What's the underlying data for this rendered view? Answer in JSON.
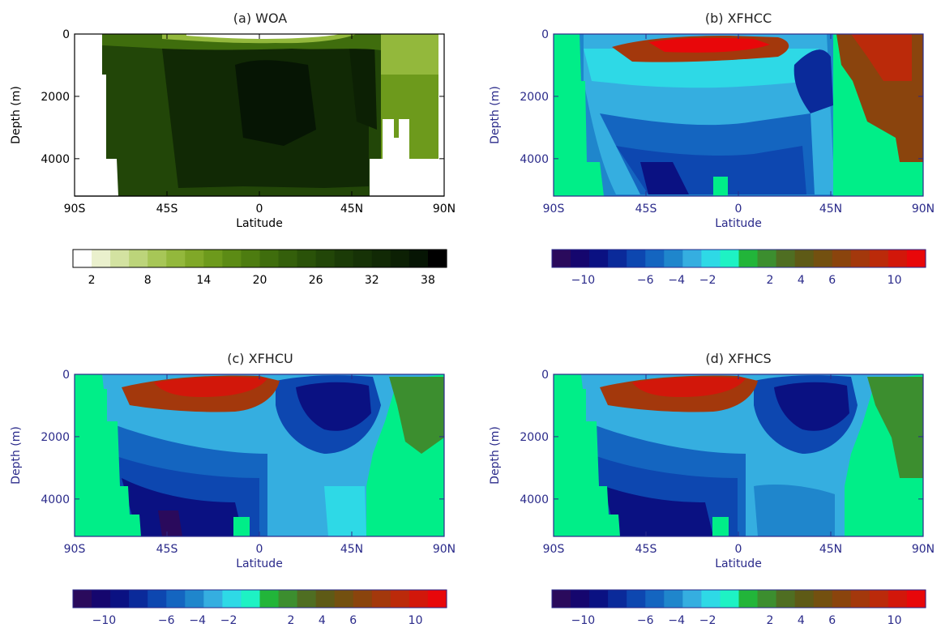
{
  "chart_data": [
    {
      "type": "heatmap",
      "title": "(a) WOA",
      "xlabel": "Latitude",
      "ylabel": "Depth (m)",
      "x_tick_labels": [
        "90S",
        "45S",
        "0",
        "45N",
        "90N"
      ],
      "x_ticks": [
        -90,
        -45,
        0,
        45,
        90
      ],
      "y_tick_labels": [
        "0",
        "2000",
        "4000"
      ],
      "y_ticks": [
        0,
        2000,
        4000
      ],
      "xlim": [
        -90,
        90
      ],
      "ylim": [
        5200,
        0
      ],
      "colorbar": {
        "tick_labels": [
          "2",
          "8",
          "14",
          "20",
          "26",
          "32",
          "38"
        ],
        "tick_values": [
          2,
          8,
          14,
          20,
          26,
          32,
          38
        ],
        "range": [
          0,
          40
        ],
        "colors": [
          "#ffffff",
          "#eaf0cd",
          "#d3e2a1",
          "#bcd47a",
          "#a7c657",
          "#93b83c",
          "#80a828",
          "#6d9a1c",
          "#5c8b15",
          "#4d7c10",
          "#3f6d0d",
          "#345f0b",
          "#2a5209",
          "#224608",
          "#1b3b07",
          "#163206",
          "#112905",
          "#0c2004",
          "#061504",
          "#000000"
        ]
      },
      "fields": [
        {
          "lat": [
            -90,
            -78
          ],
          "depth": [
            0,
            5200
          ],
          "value": "land"
        },
        {
          "lat": [
            -78,
            -72
          ],
          "depth": [
            0,
            800
          ],
          "value": 26
        },
        {
          "lat": [
            -76,
            -72
          ],
          "depth": [
            800,
            1500
          ],
          "value": "land"
        },
        {
          "lat": [
            -72,
            -60
          ],
          "depth": [
            0,
            5200
          ],
          "value": 26
        },
        {
          "lat": [
            -60,
            50
          ],
          "depth": [
            0,
            5200
          ],
          "value": 27
        },
        {
          "lat": [
            -30,
            10
          ],
          "depth": [
            300,
            2500
          ],
          "value": 32
        },
        {
          "lat": [
            35,
            48
          ],
          "depth": [
            0,
            3500
          ],
          "value": 33
        },
        {
          "lat": [
            50,
            65
          ],
          "depth": [
            0,
            5200
          ],
          "value": "land"
        },
        {
          "lat": [
            55,
            90
          ],
          "depth": [
            0,
            1500
          ],
          "value": 10
        },
        {
          "lat": [
            55,
            90
          ],
          "depth": [
            1500,
            4000
          ],
          "value": 13
        },
        {
          "lat": [
            -45,
            -10
          ],
          "depth": [
            0,
            200
          ],
          "value": 2
        },
        {
          "lat": [
            -10,
            30
          ],
          "depth": [
            0,
            200
          ],
          "value": 12
        }
      ]
    },
    {
      "type": "heatmap",
      "title": "(b) XFHCC",
      "xlabel": "Latitude",
      "ylabel": "Depth (m)",
      "x_tick_labels": [
        "90S",
        "45S",
        "0",
        "45N",
        "90N"
      ],
      "x_ticks": [
        -90,
        -45,
        0,
        45,
        90
      ],
      "y_tick_labels": [
        "0",
        "2000",
        "4000"
      ],
      "y_ticks": [
        0,
        2000,
        4000
      ],
      "xlim": [
        -90,
        90
      ],
      "ylim": [
        5200,
        0
      ],
      "colorbar": {
        "tick_labels": [
          "−10",
          "−6",
          "−4",
          "−2",
          "2",
          "4",
          "6",
          "10"
        ],
        "tick_values": [
          -10,
          -6,
          -4,
          -2,
          2,
          4,
          6,
          10
        ],
        "range": [
          -12,
          12
        ],
        "colors": [
          "#2a0a5c",
          "#15066e",
          "#0a1182",
          "#0a2a9a",
          "#0d47b0",
          "#1465c0",
          "#1f86cc",
          "#35aee0",
          "#2ed9e6",
          "#1ef2c4",
          "#22b53a",
          "#3c8e2f",
          "#4f6e22",
          "#5e5a16",
          "#735010",
          "#8a440d",
          "#a3380c",
          "#bb2a0a",
          "#d2170a",
          "#e8070a"
        ]
      },
      "fields": []
    },
    {
      "type": "heatmap",
      "title": "(c) XFHCU",
      "xlabel": "Latitude",
      "ylabel": "Depth (m)",
      "x_tick_labels": [
        "90S",
        "45S",
        "0",
        "45N",
        "90N"
      ],
      "x_ticks": [
        -90,
        -45,
        0,
        45,
        90
      ],
      "y_tick_labels": [
        "0",
        "2000",
        "4000"
      ],
      "y_ticks": [
        0,
        2000,
        4000
      ],
      "xlim": [
        -90,
        90
      ],
      "ylim": [
        5200,
        0
      ],
      "colorbar": {
        "tick_labels": [
          "−10",
          "−6",
          "−4",
          "−2",
          "2",
          "4",
          "6",
          "10"
        ],
        "tick_values": [
          -10,
          -6,
          -4,
          -2,
          2,
          4,
          6,
          10
        ],
        "range": [
          -12,
          12
        ],
        "colors": [
          "#2a0a5c",
          "#15066e",
          "#0a1182",
          "#0a2a9a",
          "#0d47b0",
          "#1465c0",
          "#1f86cc",
          "#35aee0",
          "#2ed9e6",
          "#1ef2c4",
          "#22b53a",
          "#3c8e2f",
          "#4f6e22",
          "#5e5a16",
          "#735010",
          "#8a440d",
          "#a3380c",
          "#bb2a0a",
          "#d2170a",
          "#e8070a"
        ]
      },
      "fields": []
    },
    {
      "type": "heatmap",
      "title": "(d) XFHCS",
      "xlabel": "Latitude",
      "ylabel": "Depth (m)",
      "x_tick_labels": [
        "90S",
        "45S",
        "0",
        "45N",
        "90N"
      ],
      "x_ticks": [
        -90,
        -45,
        0,
        45,
        90
      ],
      "y_tick_labels": [
        "0",
        "2000",
        "4000"
      ],
      "y_ticks": [
        0,
        2000,
        4000
      ],
      "xlim": [
        -90,
        90
      ],
      "ylim": [
        5200,
        0
      ],
      "colorbar": {
        "tick_labels": [
          "−10",
          "−6",
          "−4",
          "−2",
          "2",
          "4",
          "6",
          "10"
        ],
        "tick_values": [
          -10,
          -6,
          -4,
          -2,
          2,
          4,
          6,
          10
        ],
        "range": [
          -12,
          12
        ],
        "colors": [
          "#2a0a5c",
          "#15066e",
          "#0a1182",
          "#0a2a9a",
          "#0d47b0",
          "#1465c0",
          "#1f86cc",
          "#35aee0",
          "#2ed9e6",
          "#1ef2c4",
          "#22b53a",
          "#3c8e2f",
          "#4f6e22",
          "#5e5a16",
          "#735010",
          "#8a440d",
          "#a3380c",
          "#bb2a0a",
          "#d2170a",
          "#e8070a"
        ]
      },
      "fields": []
    }
  ],
  "colors": {
    "land_anomaly": "#00ee88",
    "land_woa": "#ffffff",
    "axis_blue": "#2a2a8a",
    "axis_black": "#000000"
  }
}
